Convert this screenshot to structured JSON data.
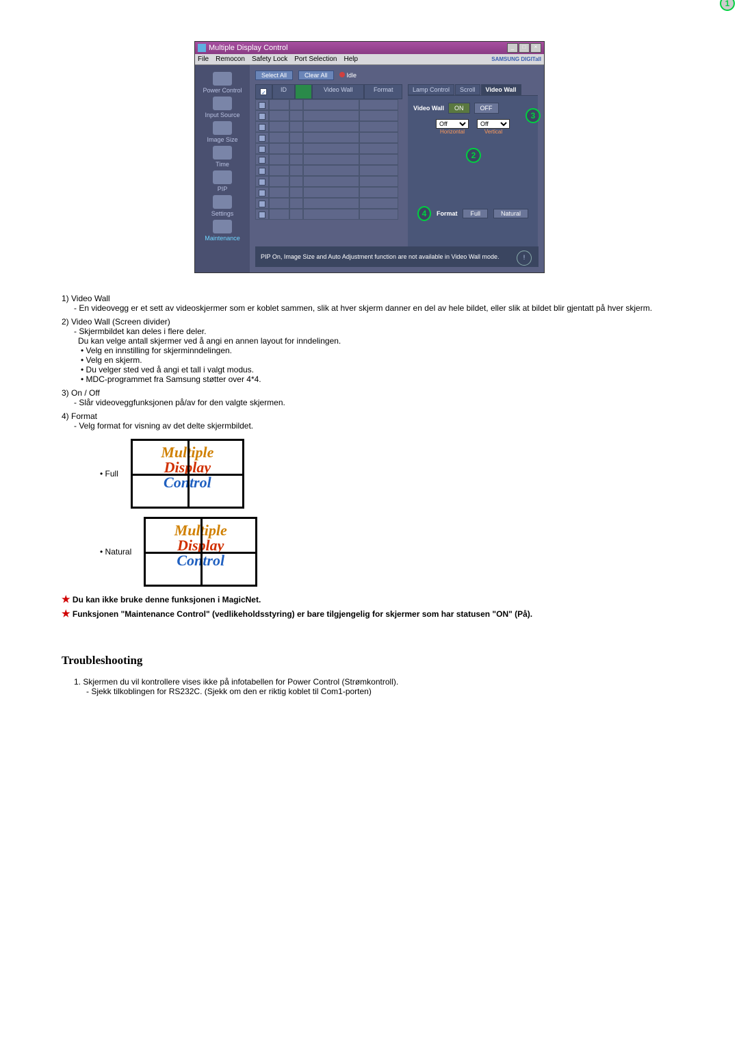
{
  "app": {
    "title": "Multiple Display Control",
    "brand": "SAMSUNG DIGITall",
    "menu": [
      "File",
      "Remocon",
      "Safety Lock",
      "Port Selection",
      "Help"
    ],
    "sidebar": [
      {
        "label": "Power Control"
      },
      {
        "label": "Input Source"
      },
      {
        "label": "Image Size"
      },
      {
        "label": "Time"
      },
      {
        "label": "PIP"
      },
      {
        "label": "Settings"
      },
      {
        "label": "Maintenance"
      }
    ],
    "toolbar": {
      "select_all": "Select All",
      "clear_all": "Clear All",
      "idle": "Idle"
    },
    "columns": {
      "c1": "",
      "c2": "ID",
      "c3": "",
      "c4": "Video Wall",
      "c5": "Format"
    },
    "tabs": {
      "lamp": "Lamp Control",
      "scroll": "Scroll",
      "video": "Video Wall"
    },
    "panel": {
      "title": "Video Wall",
      "on": "ON",
      "off": "OFF",
      "horizontal": "Horizontal",
      "vertical": "Vertical",
      "off_opt": "Off"
    },
    "format": {
      "label": "Format",
      "full": "Full",
      "natural": "Natural"
    },
    "footer": "PIP On, Image Size and Auto Adjustment function are not available in Video Wall mode."
  },
  "text": {
    "i1t": "1) Video Wall",
    "i1a": "- En videovegg er et sett av videoskjermer som er koblet sammen, slik at hver skjerm danner en del av hele bildet, eller slik at bildet blir gjentatt på hver skjerm.",
    "i2t": "2) Video Wall (Screen divider)",
    "i2a": "- Skjermbildet kan deles i flere deler.",
    "i2b": "Du kan velge antall skjermer ved å angi en annen layout for inndelingen.",
    "i2c": "Velg en innstilling for skjerminndelingen.",
    "i2d": "Velg en skjerm.",
    "i2e": "Du velger sted ved å angi et tall i valgt modus.",
    "i2f": "MDC-programmet fra Samsung støtter over 4*4.",
    "i3t": "3) On / Off",
    "i3a": "- Slår videoveggfunksjonen på/av for den valgte skjermen.",
    "i4t": "4) Format",
    "i4a": "- Velg format for visning av det delte skjermbildet.",
    "full": "Full",
    "natural": "Natural",
    "m1": "Multiple",
    "m2": "Display",
    "m3": "Control",
    "note1": "Du kan ikke bruke denne funksjonen i MagicNet.",
    "note2": "Funksjonen \"Maintenance Control\" (vedlikeholdsstyring) er bare tilgjengelig for skjermer som har statusen \"ON\" (På).",
    "h2": "Troubleshooting",
    "t1": "1. Skjermen du vil kontrollere vises ikke på infotabellen for Power Control (Strømkontroll).",
    "t1a": "- Sjekk tilkoblingen for RS232C. (Sjekk om den er riktig koblet til Com1-porten)"
  }
}
